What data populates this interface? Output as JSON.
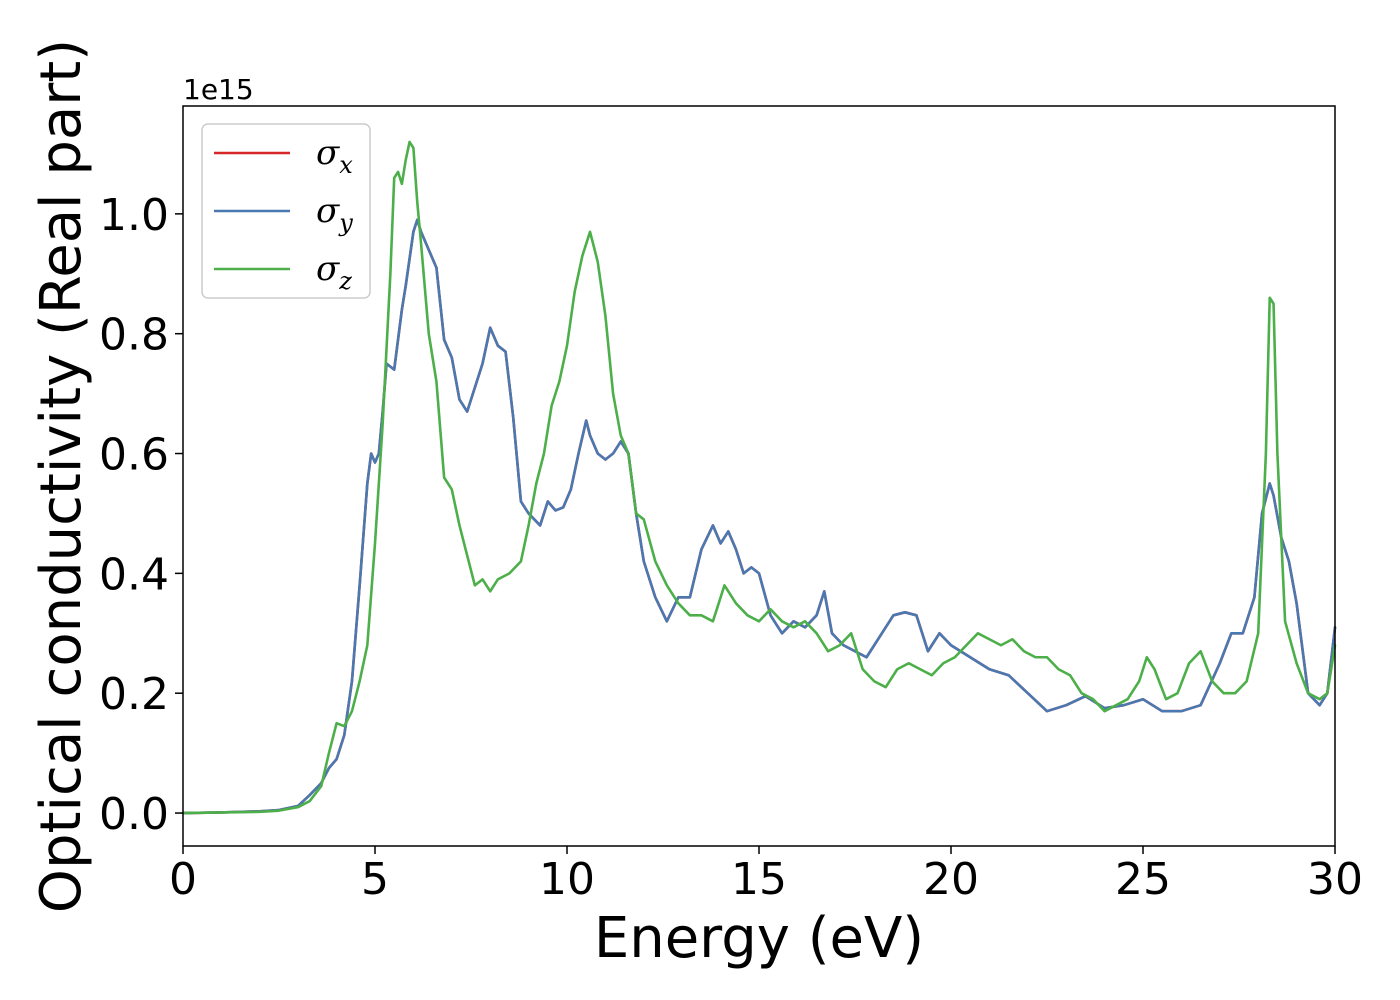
{
  "chart_data": {
    "type": "line",
    "xlabel": "Energy (eV)",
    "ylabel": "Optical conductivity (Real part)",
    "y_offset_label": "1e15",
    "xlim": [
      0,
      30
    ],
    "ylim": [
      -0.055,
      1.18
    ],
    "xticks": [
      0,
      5,
      10,
      15,
      20,
      25,
      30
    ],
    "xtick_labels": [
      "0",
      "5",
      "10",
      "15",
      "20",
      "25",
      "30"
    ],
    "yticks": [
      0.0,
      0.2,
      0.4,
      0.6,
      0.8,
      1.0
    ],
    "ytick_labels": [
      "0.0",
      "0.2",
      "0.4",
      "0.6",
      "0.8",
      "1.0"
    ],
    "grid": false,
    "legend_position": "top-left",
    "series": [
      {
        "name": "σx",
        "symbol": "σ",
        "subscript": "x",
        "color": "#d62728",
        "x": [
          0,
          1,
          2,
          2.5,
          3,
          3.3,
          3.6,
          3.8,
          4.0,
          4.2,
          4.4,
          4.6,
          4.8,
          4.9,
          5.0,
          5.1,
          5.2,
          5.3,
          5.5,
          5.6,
          5.7,
          5.8,
          6.0,
          6.1,
          6.2,
          6.4,
          6.6,
          6.8,
          7.0,
          7.2,
          7.4,
          7.5,
          7.8,
          8.0,
          8.2,
          8.4,
          8.6,
          8.8,
          9.0,
          9.3,
          9.5,
          9.7,
          9.9,
          10.1,
          10.3,
          10.5,
          10.6,
          10.8,
          11.0,
          11.2,
          11.4,
          11.6,
          11.8,
          12.0,
          12.3,
          12.6,
          12.9,
          13.2,
          13.5,
          13.8,
          14.0,
          14.2,
          14.4,
          14.6,
          14.8,
          15.0,
          15.3,
          15.6,
          15.9,
          16.2,
          16.5,
          16.7,
          16.9,
          17.2,
          17.5,
          17.8,
          18.2,
          18.5,
          18.8,
          19.1,
          19.4,
          19.7,
          20.0,
          20.5,
          21.0,
          21.5,
          22.0,
          22.5,
          23.0,
          23.5,
          24.0,
          24.5,
          25.0,
          25.5,
          26.0,
          26.5,
          27.0,
          27.3,
          27.6,
          27.9,
          28.1,
          28.3,
          28.4,
          28.6,
          28.8,
          29.0,
          29.3,
          29.6,
          29.8,
          30.0
        ],
        "y": [
          0,
          0.001,
          0.003,
          0.005,
          0.012,
          0.03,
          0.05,
          0.075,
          0.09,
          0.13,
          0.22,
          0.38,
          0.55,
          0.6,
          0.585,
          0.6,
          0.67,
          0.75,
          0.74,
          0.79,
          0.84,
          0.88,
          0.97,
          0.99,
          0.97,
          0.94,
          0.91,
          0.79,
          0.76,
          0.69,
          0.67,
          0.69,
          0.75,
          0.81,
          0.78,
          0.77,
          0.66,
          0.52,
          0.5,
          0.48,
          0.52,
          0.505,
          0.51,
          0.54,
          0.6,
          0.655,
          0.63,
          0.6,
          0.59,
          0.6,
          0.62,
          0.6,
          0.5,
          0.42,
          0.36,
          0.32,
          0.36,
          0.36,
          0.44,
          0.48,
          0.45,
          0.47,
          0.44,
          0.4,
          0.41,
          0.4,
          0.33,
          0.3,
          0.32,
          0.31,
          0.33,
          0.37,
          0.3,
          0.28,
          0.27,
          0.26,
          0.3,
          0.33,
          0.335,
          0.33,
          0.27,
          0.3,
          0.28,
          0.26,
          0.24,
          0.23,
          0.2,
          0.17,
          0.18,
          0.195,
          0.175,
          0.18,
          0.19,
          0.17,
          0.17,
          0.18,
          0.25,
          0.3,
          0.3,
          0.36,
          0.5,
          0.55,
          0.53,
          0.46,
          0.42,
          0.35,
          0.2,
          0.18,
          0.2,
          0.31
        ]
      },
      {
        "name": "σy",
        "symbol": "σ",
        "subscript": "y",
        "color": "#4a78b0",
        "x": [
          0,
          1,
          2,
          2.5,
          3,
          3.3,
          3.6,
          3.8,
          4.0,
          4.2,
          4.4,
          4.6,
          4.8,
          4.9,
          5.0,
          5.1,
          5.2,
          5.3,
          5.5,
          5.6,
          5.7,
          5.8,
          6.0,
          6.1,
          6.2,
          6.4,
          6.6,
          6.8,
          7.0,
          7.2,
          7.4,
          7.5,
          7.8,
          8.0,
          8.2,
          8.4,
          8.6,
          8.8,
          9.0,
          9.3,
          9.5,
          9.7,
          9.9,
          10.1,
          10.3,
          10.5,
          10.6,
          10.8,
          11.0,
          11.2,
          11.4,
          11.6,
          11.8,
          12.0,
          12.3,
          12.6,
          12.9,
          13.2,
          13.5,
          13.8,
          14.0,
          14.2,
          14.4,
          14.6,
          14.8,
          15.0,
          15.3,
          15.6,
          15.9,
          16.2,
          16.5,
          16.7,
          16.9,
          17.2,
          17.5,
          17.8,
          18.2,
          18.5,
          18.8,
          19.1,
          19.4,
          19.7,
          20.0,
          20.5,
          21.0,
          21.5,
          22.0,
          22.5,
          23.0,
          23.5,
          24.0,
          24.5,
          25.0,
          25.5,
          26.0,
          26.5,
          27.0,
          27.3,
          27.6,
          27.9,
          28.1,
          28.3,
          28.4,
          28.6,
          28.8,
          29.0,
          29.3,
          29.6,
          29.8,
          30.0
        ],
        "y": [
          0,
          0.001,
          0.003,
          0.005,
          0.012,
          0.03,
          0.05,
          0.075,
          0.09,
          0.13,
          0.22,
          0.38,
          0.55,
          0.6,
          0.585,
          0.6,
          0.67,
          0.75,
          0.74,
          0.79,
          0.84,
          0.88,
          0.97,
          0.99,
          0.97,
          0.94,
          0.91,
          0.79,
          0.76,
          0.69,
          0.67,
          0.69,
          0.75,
          0.81,
          0.78,
          0.77,
          0.66,
          0.52,
          0.5,
          0.48,
          0.52,
          0.505,
          0.51,
          0.54,
          0.6,
          0.655,
          0.63,
          0.6,
          0.59,
          0.6,
          0.62,
          0.6,
          0.5,
          0.42,
          0.36,
          0.32,
          0.36,
          0.36,
          0.44,
          0.48,
          0.45,
          0.47,
          0.44,
          0.4,
          0.41,
          0.4,
          0.33,
          0.3,
          0.32,
          0.31,
          0.33,
          0.37,
          0.3,
          0.28,
          0.27,
          0.26,
          0.3,
          0.33,
          0.335,
          0.33,
          0.27,
          0.3,
          0.28,
          0.26,
          0.24,
          0.23,
          0.2,
          0.17,
          0.18,
          0.195,
          0.175,
          0.18,
          0.19,
          0.17,
          0.17,
          0.18,
          0.25,
          0.3,
          0.3,
          0.36,
          0.5,
          0.55,
          0.53,
          0.46,
          0.42,
          0.35,
          0.2,
          0.18,
          0.2,
          0.31
        ]
      },
      {
        "name": "σz",
        "symbol": "σ",
        "subscript": "z",
        "color": "#4daf4a",
        "x": [
          0,
          1,
          2,
          2.5,
          3,
          3.3,
          3.6,
          3.8,
          4.0,
          4.2,
          4.4,
          4.6,
          4.8,
          5.0,
          5.2,
          5.4,
          5.5,
          5.6,
          5.7,
          5.8,
          5.9,
          6.0,
          6.1,
          6.2,
          6.4,
          6.6,
          6.8,
          7.0,
          7.2,
          7.4,
          7.6,
          7.8,
          8.0,
          8.2,
          8.5,
          8.8,
          9.0,
          9.2,
          9.4,
          9.6,
          9.8,
          10.0,
          10.2,
          10.4,
          10.6,
          10.8,
          11.0,
          11.2,
          11.4,
          11.6,
          11.8,
          12.0,
          12.3,
          12.6,
          12.9,
          13.2,
          13.5,
          13.8,
          14.1,
          14.4,
          14.7,
          15.0,
          15.3,
          15.6,
          15.9,
          16.2,
          16.5,
          16.8,
          17.1,
          17.4,
          17.7,
          18.0,
          18.3,
          18.6,
          18.9,
          19.2,
          19.5,
          19.8,
          20.1,
          20.4,
          20.7,
          21.0,
          21.3,
          21.6,
          21.9,
          22.2,
          22.5,
          22.8,
          23.1,
          23.4,
          23.7,
          24.0,
          24.3,
          24.6,
          24.9,
          25.1,
          25.3,
          25.6,
          25.9,
          26.2,
          26.5,
          26.8,
          27.1,
          27.4,
          27.7,
          28.0,
          28.2,
          28.3,
          28.4,
          28.5,
          28.7,
          29.0,
          29.3,
          29.6,
          29.8,
          30.0
        ],
        "y": [
          0,
          0.001,
          0.002,
          0.004,
          0.01,
          0.02,
          0.045,
          0.1,
          0.15,
          0.145,
          0.17,
          0.22,
          0.28,
          0.45,
          0.65,
          0.9,
          1.06,
          1.07,
          1.05,
          1.09,
          1.12,
          1.11,
          1.02,
          0.95,
          0.8,
          0.72,
          0.56,
          0.54,
          0.48,
          0.43,
          0.38,
          0.39,
          0.37,
          0.39,
          0.4,
          0.42,
          0.48,
          0.55,
          0.6,
          0.68,
          0.72,
          0.78,
          0.87,
          0.93,
          0.97,
          0.92,
          0.83,
          0.7,
          0.63,
          0.6,
          0.5,
          0.49,
          0.42,
          0.38,
          0.35,
          0.33,
          0.33,
          0.32,
          0.38,
          0.35,
          0.33,
          0.32,
          0.34,
          0.32,
          0.31,
          0.32,
          0.3,
          0.27,
          0.28,
          0.3,
          0.24,
          0.22,
          0.21,
          0.24,
          0.25,
          0.24,
          0.23,
          0.25,
          0.26,
          0.28,
          0.3,
          0.29,
          0.28,
          0.29,
          0.27,
          0.26,
          0.26,
          0.24,
          0.23,
          0.2,
          0.19,
          0.17,
          0.18,
          0.19,
          0.22,
          0.26,
          0.24,
          0.19,
          0.2,
          0.25,
          0.27,
          0.22,
          0.2,
          0.2,
          0.22,
          0.3,
          0.6,
          0.86,
          0.85,
          0.6,
          0.32,
          0.25,
          0.2,
          0.19,
          0.2,
          0.28
        ]
      }
    ]
  }
}
